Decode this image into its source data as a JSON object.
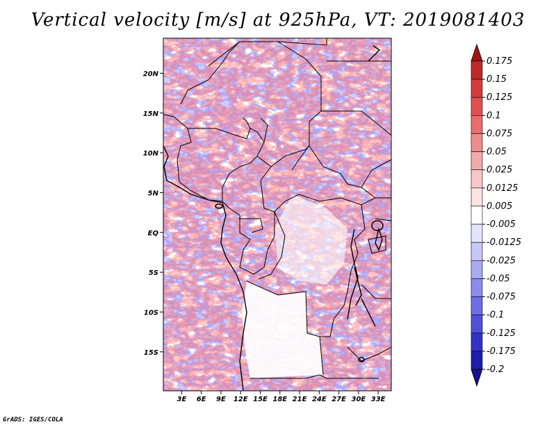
{
  "title": "Vertical velocity [m/s] at 925hPa, VT: 2019081403",
  "footer": "GrADS: IGES/COLA",
  "lat_labels": [
    "20N",
    "15N",
    "10N",
    "5N",
    "EQ",
    "5S",
    "10S",
    "15S"
  ],
  "lat_values": [
    20,
    15,
    10,
    5,
    0,
    -5,
    -10,
    -15
  ],
  "lon_labels": [
    "3E",
    "6E",
    "9E",
    "12E",
    "15E",
    "18E",
    "21E",
    "24E",
    "27E",
    "30E",
    "33E"
  ],
  "lon_values": [
    3,
    6,
    9,
    12,
    15,
    18,
    21,
    24,
    27,
    30,
    33
  ],
  "map_extent": {
    "lon_min": 0.2,
    "lon_max": 35.0,
    "lat_min": -19.9,
    "lat_max": 24.4
  },
  "colorbar": {
    "labels": [
      "0.175",
      "0.15",
      "0.125",
      "0.1",
      "0.075",
      "0.05",
      "0.025",
      "0.0125",
      "0.005",
      "-0.005",
      "-0.0125",
      "-0.025",
      "-0.05",
      "-0.075",
      "-0.1",
      "-0.125",
      "-0.175",
      "-0.2"
    ],
    "colors": [
      "#a01414",
      "#be2828",
      "#d23c3c",
      "#e05050",
      "#e86e6e",
      "#ee8c8c",
      "#f4aaaa",
      "#f8c8c8",
      "#fce4e4",
      "#ffffff",
      "#e4e4fc",
      "#c8c8f8",
      "#aaaaf2",
      "#8c8cec",
      "#6e6ee4",
      "#5050d6",
      "#3232c4",
      "#1e1eaa",
      "#14148c"
    ]
  }
}
